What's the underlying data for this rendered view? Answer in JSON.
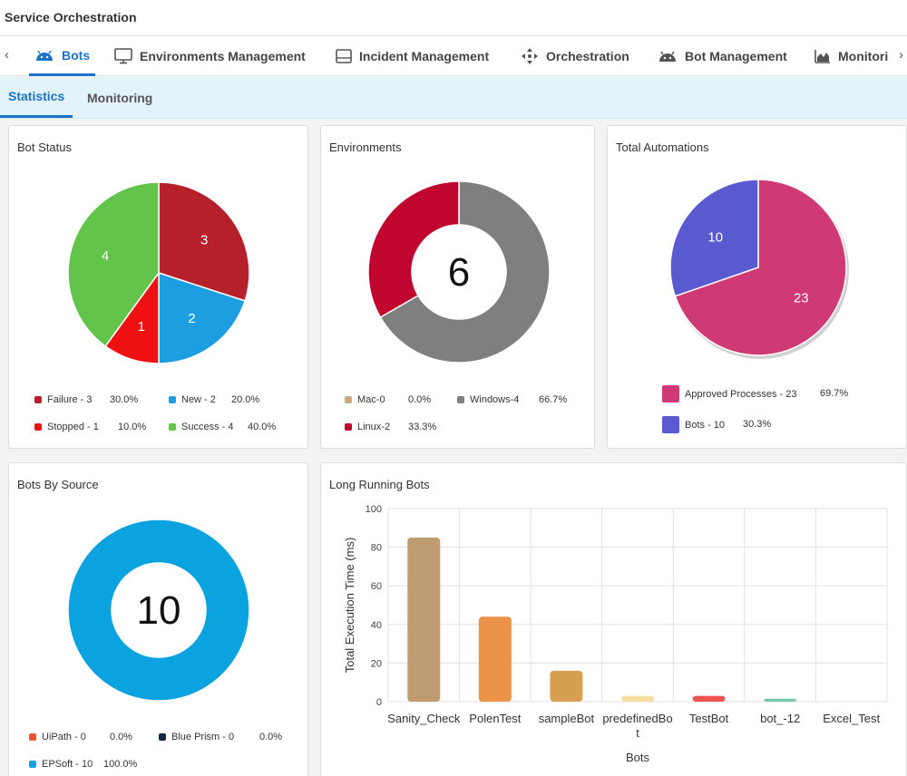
{
  "app": {
    "title": "Service Orchestration"
  },
  "tabs": [
    {
      "label": "Bots",
      "icon": "android-icon"
    },
    {
      "label": "Environments Management",
      "icon": "monitor-icon"
    },
    {
      "label": "Incident Management",
      "icon": "inbox-icon"
    },
    {
      "label": "Orchestration",
      "icon": "move-arrows-icon"
    },
    {
      "label": "Bot Management",
      "icon": "android-icon"
    },
    {
      "label": "Monitori",
      "icon": "area-chart-icon"
    }
  ],
  "subtabs": [
    {
      "label": "Statistics"
    },
    {
      "label": "Monitoring"
    }
  ],
  "cards": {
    "bot_status": {
      "title": "Bot Status"
    },
    "environments": {
      "title": "Environments",
      "center_value": "6"
    },
    "total_automations": {
      "title": "Total Automations"
    },
    "bots_by_source": {
      "title": "Bots By Source",
      "center_value": "10"
    },
    "long_running": {
      "title": "Long Running Bots"
    }
  },
  "colors": {
    "accent": "#1a73c8",
    "subtab_bg": "#e3f3fc"
  },
  "chart_data": [
    {
      "type": "pie",
      "title": "Bot Status",
      "slices": [
        {
          "label": "Failure - 3",
          "value": 3,
          "percent": "30.0%",
          "color": "#b5202b"
        },
        {
          "label": "New - 2",
          "value": 2,
          "percent": "20.0%",
          "color": "#1d9ee0"
        },
        {
          "label": "Stopped - 1",
          "value": 1,
          "percent": "10.0%",
          "color": "#ef1111"
        },
        {
          "label": "Success - 4",
          "value": 4,
          "percent": "40.0%",
          "color": "#62c44b"
        }
      ]
    },
    {
      "type": "pie",
      "title": "Environments",
      "slices": [
        {
          "label": "Mac-0",
          "value": 0,
          "percent": "0.0%",
          "color": "#c9a97e"
        },
        {
          "label": "Windows-4",
          "value": 4,
          "percent": "66.7%",
          "color": "#7f7f7f"
        },
        {
          "label": "Linux-2",
          "value": 2,
          "percent": "33.3%",
          "color": "#c0052e"
        }
      ]
    },
    {
      "type": "pie",
      "title": "Total Automations",
      "slices": [
        {
          "label": "Approved Processes - 23",
          "value": 23,
          "percent": "69.7%",
          "color": "#d03a74"
        },
        {
          "label": "Bots - 10",
          "value": 10,
          "percent": "30.3%",
          "color": "#5a5ad0"
        }
      ]
    },
    {
      "type": "pie",
      "title": "Bots By Source",
      "slices": [
        {
          "label": "UiPath - 0",
          "value": 0,
          "percent": "0.0%",
          "color": "#f0542d"
        },
        {
          "label": "Blue Prism - 0",
          "value": 0,
          "percent": "0.0%",
          "color": "#122843"
        },
        {
          "label": "EPSoft - 10",
          "value": 10,
          "percent": "100.0%",
          "color": "#0aa3e0"
        }
      ]
    },
    {
      "type": "bar",
      "title": "Long Running Bots",
      "xlabel": "Bots",
      "ylabel": "Total Execution Time (ms)",
      "ylim": [
        0,
        100
      ],
      "yticks": [
        "0",
        "20",
        "40",
        "60",
        "80",
        "100"
      ],
      "categories": [
        "Sanity_Check",
        "PolenTest",
        "sampleBot",
        "predefinedBo\nt",
        "TestBot",
        "bot_-12",
        "Excel_Test"
      ],
      "values": [
        85,
        44,
        16,
        3,
        3,
        1.5,
        0
      ],
      "colors": [
        "#bf9b72",
        "#ea9349",
        "#d6a050",
        "#f4dfa0",
        "#ef5350",
        "#74c9ad",
        "#b0b0b0"
      ],
      "grid": true
    }
  ]
}
